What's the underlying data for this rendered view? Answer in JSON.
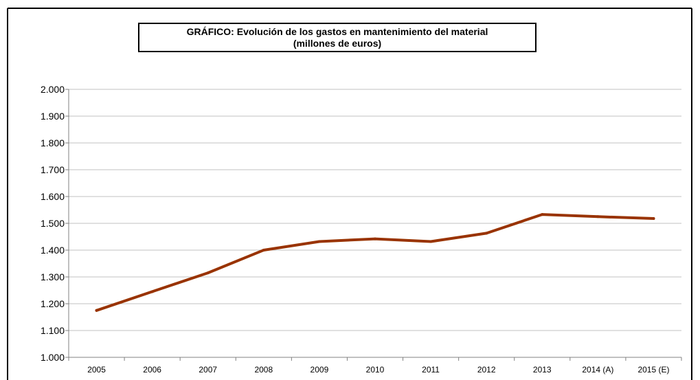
{
  "chart_data": {
    "type": "line",
    "title": "GRÁFICO: Evolución de los gastos en mantenimiento del material",
    "subtitle": "(millones de euros)",
    "xlabel": "",
    "ylabel": "",
    "categories": [
      "2005",
      "2006",
      "2007",
      "2008",
      "2009",
      "2010",
      "2011",
      "2012",
      "2013",
      "2014 (A)",
      "2015 (E)"
    ],
    "series": [
      {
        "values": [
          1175,
          1245,
          1315,
          1400,
          1432,
          1442,
          1432,
          1463,
          1533,
          1525,
          1518
        ],
        "color": "#993300"
      }
    ],
    "ylim": [
      1000,
      2000
    ],
    "yticks": [
      1000,
      1100,
      1200,
      1300,
      1400,
      1500,
      1600,
      1700,
      1800,
      1900,
      2000
    ],
    "ytick_labels": [
      "1.000",
      "1.100",
      "1.200",
      "1.300",
      "1.400",
      "1.500",
      "1.600",
      "1.700",
      "1.800",
      "1.900",
      "2.000"
    ],
    "grid": true,
    "legend": "none",
    "gridline_color": "#c0c0c0",
    "axis_color": "#808080"
  }
}
